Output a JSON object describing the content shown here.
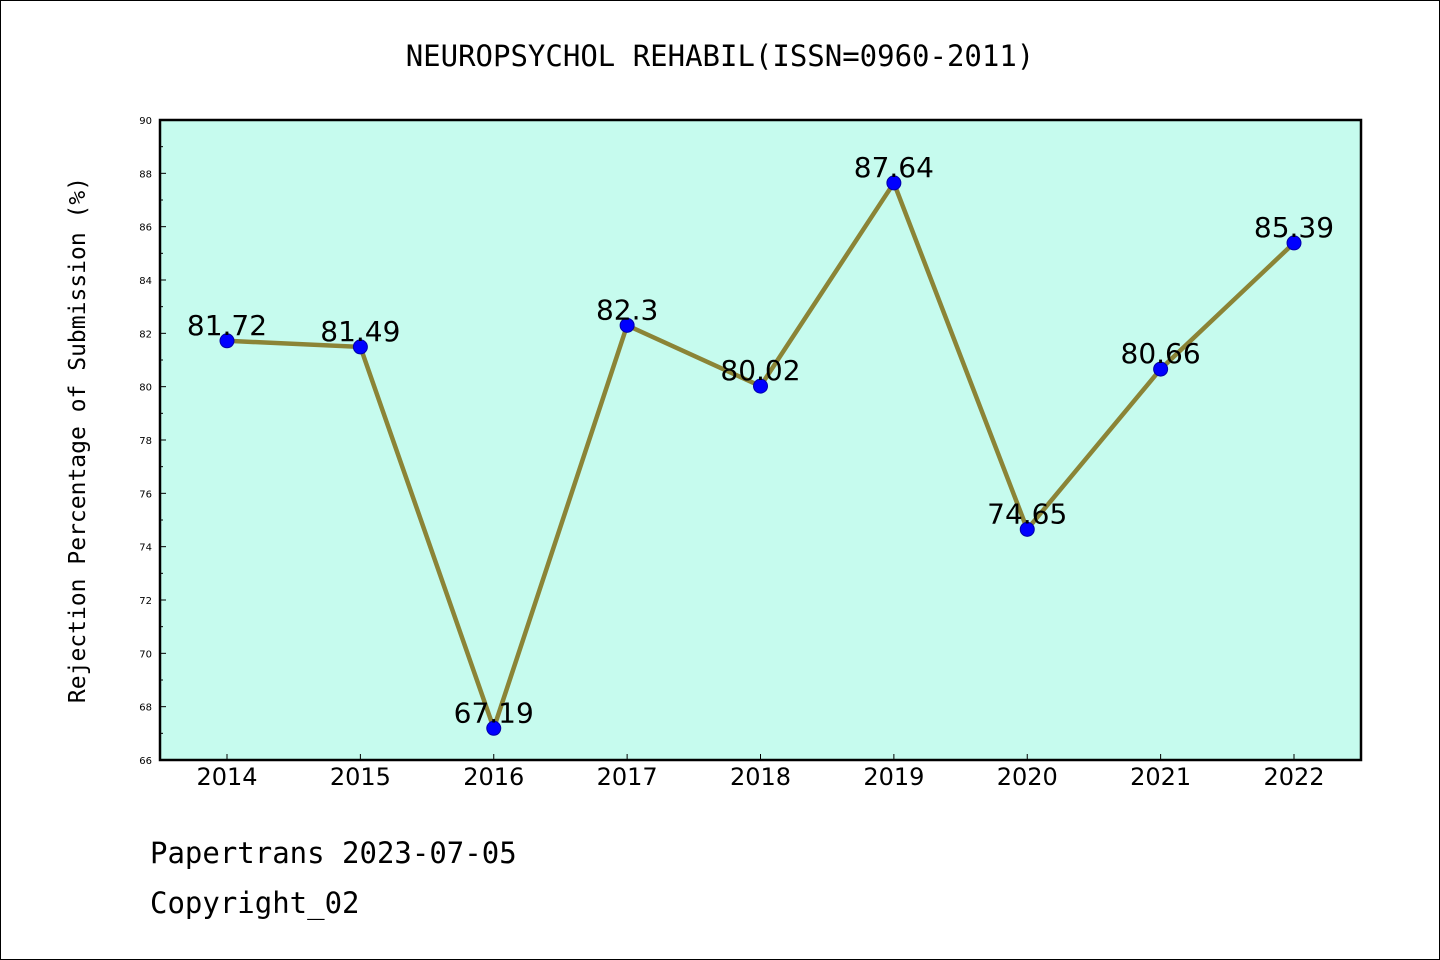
{
  "chart_data": {
    "type": "line",
    "title": "NEUROPSYCHOL REHABIL(ISSN=0960-2011)",
    "xlabel": "",
    "ylabel": "Rejection Percentage of Submission (%)",
    "categories": [
      "2014",
      "2015",
      "2016",
      "2017",
      "2018",
      "2019",
      "2020",
      "2021",
      "2022"
    ],
    "series": [
      {
        "values": [
          81.72,
          81.49,
          67.19,
          82.3,
          80.02,
          87.64,
          74.65,
          80.66,
          85.39
        ],
        "labels": [
          "81.72",
          "81.49",
          "67.19",
          "82.3",
          "80.02",
          "87.64",
          "74.65",
          "80.66",
          "85.39"
        ]
      }
    ],
    "ylim": [
      66,
      90
    ],
    "yticks": [
      "66",
      "68",
      "70",
      "72",
      "74",
      "76",
      "78",
      "80",
      "82",
      "84",
      "86",
      "88",
      "90"
    ],
    "grid": false,
    "colors": {
      "plot_background": "#c6fbee",
      "line": "#8b8436",
      "marker": "#0000ff",
      "axis": "#000000"
    }
  },
  "footer": {
    "line1": "Papertrans 2023-07-05",
    "line2": "Copyright_02"
  }
}
